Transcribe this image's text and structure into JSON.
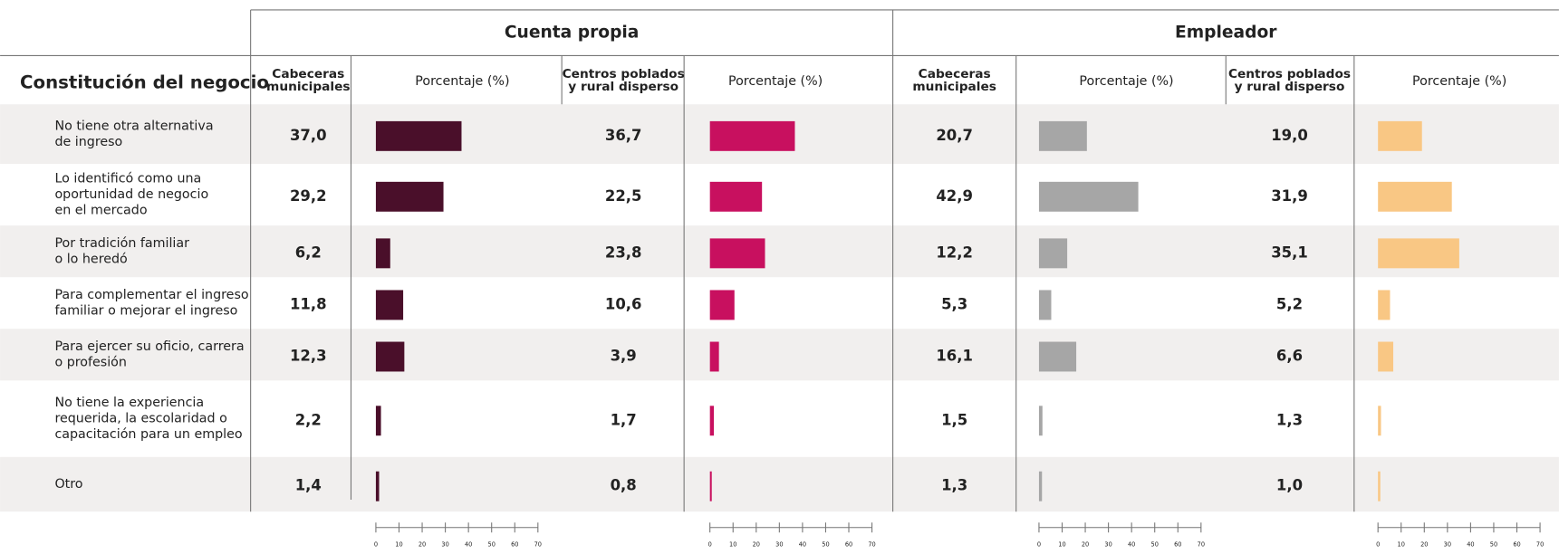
{
  "title": "Constitución del negocio",
  "groups": [
    "Cuenta propia",
    "Empleador"
  ],
  "bar_header": "Porcentaje (%)",
  "rows": [
    {
      "label": [
        "No tiene otra alternativa",
        "de ingreso"
      ]
    },
    {
      "label": [
        "Lo identificó como una",
        "oportunidad de negocio",
        "en el mercado"
      ]
    },
    {
      "label": [
        "Por tradición familiar",
        "o lo heredó"
      ]
    },
    {
      "label": [
        "Para complementar el ingreso",
        "familiar o mejorar el ingreso"
      ]
    },
    {
      "label": [
        "Para ejercer su oficio, carrera",
        "o profesión"
      ]
    },
    {
      "label": [
        "No tiene la experiencia",
        "requerida, la escolaridad o",
        "capacitación para un empleo"
      ]
    },
    {
      "label": [
        "Otro"
      ]
    }
  ],
  "columns": [
    {
      "group": 0,
      "header": [
        "Cabeceras",
        "municipales"
      ],
      "color": "#4a0f2a",
      "values": [
        37.0,
        29.2,
        6.2,
        11.8,
        12.3,
        2.2,
        1.4
      ],
      "value_labels": [
        "37,0",
        "29,2",
        "6,2",
        "11,8",
        "12,3",
        "2,2",
        "1,4"
      ]
    },
    {
      "group": 0,
      "header": [
        "Centros poblados",
        "y rural disperso"
      ],
      "color": "#c8105f",
      "values": [
        36.7,
        22.5,
        23.8,
        10.6,
        3.9,
        1.7,
        0.8
      ],
      "value_labels": [
        "36,7",
        "22,5",
        "23,8",
        "10,6",
        "3,9",
        "1,7",
        "0,8"
      ]
    },
    {
      "group": 1,
      "header": [
        "Cabeceras",
        "municipales"
      ],
      "color": "#a6a6a6",
      "values": [
        20.7,
        42.9,
        12.2,
        5.3,
        16.1,
        1.5,
        1.3
      ],
      "value_labels": [
        "20,7",
        "42,9",
        "12,2",
        "5,3",
        "16,1",
        "1,5",
        "1,3"
      ]
    },
    {
      "group": 1,
      "header": [
        "Centros poblados",
        "y rural disperso"
      ],
      "color": "#f9c784",
      "values": [
        19.0,
        31.9,
        35.1,
        5.2,
        6.6,
        1.3,
        1.0
      ],
      "value_labels": [
        "19,0",
        "31,9",
        "35,1",
        "5,2",
        "6,6",
        "1,3",
        "1,0"
      ]
    }
  ],
  "axis": {
    "xlim": [
      0,
      70
    ],
    "xticks": [
      0,
      10,
      20,
      30,
      40,
      50,
      60,
      70
    ]
  }
}
